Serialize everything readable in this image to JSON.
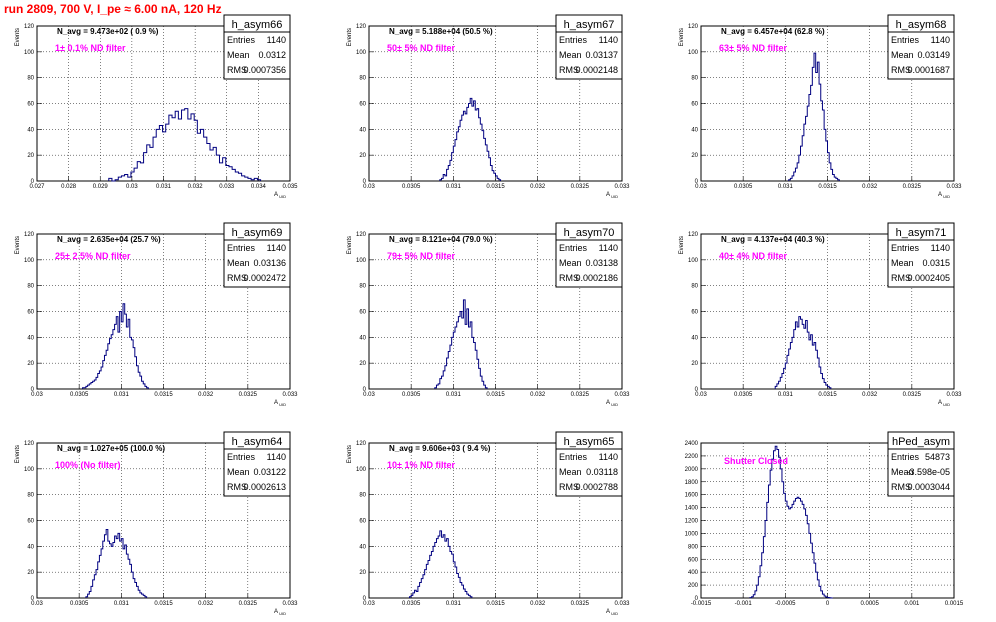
{
  "title": "run 2809,   700 V, I_pe ≈ 6.00 nA, 120 Hz",
  "stats_labels": {
    "entries": "Entries",
    "mean": "Mean",
    "rms": "RMS"
  },
  "colors": {
    "title": "#ff0000",
    "histogram": "#000080",
    "annotation": "#ff00ff",
    "grid": "#000000"
  },
  "chart_data": [
    {
      "type": "bar",
      "name": "h_asym66",
      "navg": "N_avg = 9.473e+02 ( 0.9 %)",
      "filter": "1± 0.1% ND filter",
      "entries": "1140",
      "mean": "0.0312",
      "rms": "0.0007356",
      "xlabel": "A_UID",
      "ylabel": "Events",
      "xlim": [
        0.027,
        0.035
      ],
      "ylim": [
        0,
        120
      ],
      "xticks": [
        0.027,
        0.028,
        0.029,
        0.03,
        0.031,
        0.032,
        0.033,
        0.034,
        0.035
      ],
      "xticklabels": [
        "0.027",
        "0.028",
        "0.029",
        "0.03",
        "0.031",
        "0.032",
        "0.033",
        "0.034",
        "0.035"
      ],
      "yticks": [
        0,
        20,
        40,
        60,
        80,
        100,
        120
      ],
      "x_start": 0.02927,
      "bin_width": 0.0001,
      "values": [
        2,
        0,
        1,
        3,
        4,
        5,
        3,
        7,
        10,
        15,
        14,
        22,
        28,
        26,
        34,
        40,
        43,
        38,
        44,
        51,
        49,
        54,
        48,
        55,
        56,
        48,
        52,
        47,
        37,
        40,
        34,
        29,
        24,
        26,
        20,
        14,
        18,
        12,
        11,
        9,
        7,
        6,
        4,
        3,
        2,
        1,
        2,
        1
      ]
    },
    {
      "type": "bar",
      "name": "h_asym67",
      "navg": "N_avg = 5.188e+04 (50.5 %)",
      "filter": "50± 5% ND filter",
      "entries": "1140",
      "mean": "0.03137",
      "rms": "0.0002148",
      "xlabel": "A_UID",
      "ylabel": "Events",
      "xlim": [
        0.03,
        0.033
      ],
      "ylim": [
        0,
        120
      ],
      "xticks": [
        0.03,
        0.0305,
        0.031,
        0.0315,
        0.032,
        0.0325,
        0.033
      ],
      "xticklabels": [
        "0.03",
        "0.0305",
        "0.031",
        "0.0315",
        "0.032",
        "0.0325",
        "0.033"
      ],
      "yticks": [
        0,
        20,
        40,
        60,
        80,
        100,
        120
      ],
      "x_start": 0.03084,
      "bin_width": 2e-05,
      "values": [
        1,
        2,
        5,
        4,
        9,
        12,
        16,
        22,
        27,
        32,
        38,
        42,
        47,
        51,
        54,
        52,
        57,
        60,
        64,
        58,
        62,
        55,
        56,
        49,
        44,
        39,
        33,
        28,
        23,
        18,
        12,
        8,
        6,
        4,
        2,
        1
      ]
    },
    {
      "type": "bar",
      "name": "h_asym68",
      "navg": "N_avg = 6.457e+04 (62.8 %)",
      "filter": "63± 5% ND filter",
      "entries": "1140",
      "mean": "0.03149",
      "rms": "0.0001687",
      "xlabel": "A_UID",
      "ylabel": "Events",
      "xlim": [
        0.03,
        0.033
      ],
      "ylim": [
        0,
        120
      ],
      "xticks": [
        0.03,
        0.0305,
        0.031,
        0.0315,
        0.032,
        0.0325,
        0.033
      ],
      "xticklabels": [
        "0.03",
        "0.0305",
        "0.031",
        "0.0315",
        "0.032",
        "0.0325",
        "0.033"
      ],
      "yticks": [
        0,
        20,
        40,
        60,
        80,
        100,
        120
      ],
      "x_start": 0.03104,
      "bin_width": 2e-05,
      "values": [
        1,
        2,
        4,
        7,
        10,
        14,
        20,
        27,
        35,
        44,
        50,
        58,
        67,
        74,
        88,
        99,
        84,
        92,
        75,
        62,
        55,
        40,
        31,
        22,
        14,
        9,
        5,
        3,
        2,
        1
      ]
    },
    {
      "type": "bar",
      "name": "h_asym69",
      "navg": "N_avg = 2.635e+04 (25.7 %)",
      "filter": "25± 2.5% ND filter",
      "entries": "1140",
      "mean": "0.03136",
      "rms": "0.0002472",
      "xlabel": "A_UID",
      "ylabel": "Events",
      "xlim": [
        0.03,
        0.033
      ],
      "ylim": [
        0,
        120
      ],
      "xticks": [
        0.03,
        0.0305,
        0.031,
        0.0315,
        0.032,
        0.0325,
        0.033
      ],
      "xticklabels": [
        "0.03",
        "0.0305",
        "0.031",
        "0.0315",
        "0.032",
        "0.0325",
        "0.033"
      ],
      "yticks": [
        0,
        20,
        40,
        60,
        80,
        100,
        120
      ],
      "x_start": 0.03054,
      "bin_width": 2e-05,
      "values": [
        1,
        1,
        2,
        3,
        4,
        5,
        6,
        7,
        9,
        12,
        14,
        17,
        22,
        26,
        30,
        35,
        39,
        42,
        46,
        50,
        56,
        44,
        60,
        52,
        66,
        58,
        48,
        54,
        40,
        38,
        32,
        25,
        18,
        13,
        10,
        6,
        4,
        2,
        1
      ]
    },
    {
      "type": "bar",
      "name": "h_asym70",
      "navg": "N_avg = 8.121e+04 (79.0 %)",
      "filter": "79± 5% ND filter",
      "entries": "1140",
      "mean": "0.03138",
      "rms": "0.0002186",
      "xlabel": "A_UID",
      "ylabel": "Events",
      "xlim": [
        0.03,
        0.033
      ],
      "ylim": [
        0,
        120
      ],
      "xticks": [
        0.03,
        0.0305,
        0.031,
        0.0315,
        0.032,
        0.0325,
        0.033
      ],
      "xticklabels": [
        "0.03",
        "0.0305",
        "0.031",
        "0.0315",
        "0.032",
        "0.0325",
        "0.033"
      ],
      "yticks": [
        0,
        20,
        40,
        60,
        80,
        100,
        120
      ],
      "x_start": 0.03078,
      "bin_width": 2e-05,
      "values": [
        1,
        3,
        4,
        8,
        10,
        14,
        18,
        24,
        29,
        34,
        40,
        44,
        48,
        52,
        56,
        60,
        55,
        69,
        50,
        62,
        48,
        52,
        40,
        36,
        30,
        23,
        16,
        10,
        6,
        3,
        1
      ]
    },
    {
      "type": "bar",
      "name": "h_asym71",
      "navg": "N_avg = 4.137e+04 (40.3 %)",
      "filter": "40± 4% ND filter",
      "entries": "1140",
      "mean": "0.0315",
      "rms": "0.0002405",
      "xlabel": "A_UID",
      "ylabel": "Events",
      "xlim": [
        0.03,
        0.033
      ],
      "ylim": [
        0,
        120
      ],
      "xticks": [
        0.03,
        0.0305,
        0.031,
        0.0315,
        0.032,
        0.0325,
        0.033
      ],
      "xticklabels": [
        "0.03",
        "0.0305",
        "0.031",
        "0.0315",
        "0.032",
        "0.0325",
        "0.033"
      ],
      "yticks": [
        0,
        20,
        40,
        60,
        80,
        100,
        120
      ],
      "x_start": 0.03088,
      "bin_width": 2e-05,
      "values": [
        2,
        4,
        6,
        9,
        12,
        16,
        20,
        26,
        31,
        36,
        40,
        46,
        52,
        48,
        56,
        54,
        50,
        47,
        53,
        44,
        38,
        42,
        34,
        36,
        30,
        24,
        17,
        12,
        8,
        5,
        3,
        2,
        1
      ]
    },
    {
      "type": "bar",
      "name": "h_asym64",
      "navg": "N_avg = 1.027e+05 (100.0 %)",
      "filter": "100% (No filter)",
      "entries": "1140",
      "mean": "0.03122",
      "rms": "0.0002613",
      "xlabel": "A_UID",
      "ylabel": "Events",
      "xlim": [
        0.03,
        0.033
      ],
      "ylim": [
        0,
        120
      ],
      "xticks": [
        0.03,
        0.0305,
        0.031,
        0.0315,
        0.032,
        0.0325,
        0.033
      ],
      "xticklabels": [
        "0.03",
        "0.0305",
        "0.031",
        "0.0315",
        "0.032",
        "0.0325",
        "0.033"
      ],
      "yticks": [
        0,
        20,
        40,
        60,
        80,
        100,
        120
      ],
      "x_start": 0.03058,
      "bin_width": 2e-05,
      "values": [
        1,
        3,
        5,
        9,
        14,
        18,
        22,
        28,
        33,
        38,
        44,
        49,
        53,
        44,
        42,
        40,
        43,
        48,
        46,
        50,
        44,
        46,
        38,
        41,
        34,
        30,
        26,
        20,
        15,
        12,
        9,
        6,
        4,
        3,
        2,
        1
      ]
    },
    {
      "type": "bar",
      "name": "h_asym65",
      "navg": "N_avg = 9.606e+03 ( 9.4 %)",
      "filter": "10± 1% ND filter",
      "entries": "1140",
      "mean": "0.03118",
      "rms": "0.0002788",
      "xlabel": "A_UID",
      "ylabel": "Events",
      "xlim": [
        0.03,
        0.033
      ],
      "ylim": [
        0,
        120
      ],
      "xticks": [
        0.03,
        0.0305,
        0.031,
        0.0315,
        0.032,
        0.0325,
        0.033
      ],
      "xticklabels": [
        "0.03",
        "0.0305",
        "0.031",
        "0.0315",
        "0.032",
        "0.0325",
        "0.033"
      ],
      "yticks": [
        0,
        20,
        40,
        60,
        80,
        100,
        120
      ],
      "x_start": 0.03048,
      "bin_width": 2e-05,
      "values": [
        1,
        2,
        4,
        6,
        5,
        9,
        12,
        15,
        18,
        22,
        26,
        29,
        33,
        36,
        40,
        43,
        46,
        48,
        52,
        47,
        49,
        44,
        46,
        40,
        36,
        34,
        28,
        24,
        19,
        16,
        12,
        10,
        7,
        5,
        3,
        2,
        1
      ]
    },
    {
      "type": "bar",
      "name": "hPed_asym",
      "navg": "",
      "filter": "Shutter Closed",
      "entries": "54873",
      "mean": "-3.598e-05",
      "rms": "0.0003044",
      "xlabel": "",
      "ylabel": "",
      "xlim": [
        -0.0015,
        0.0015
      ],
      "ylim": [
        0,
        2400
      ],
      "xticks": [
        -0.0015,
        -0.001,
        -0.0005,
        0,
        0.0005,
        0.001,
        0.0015
      ],
      "xticklabels": [
        "-0.0015",
        "-0.001",
        "-0.0005",
        "0",
        "0.0005",
        "0.001",
        "0.0015"
      ],
      "yticks": [
        0,
        200,
        400,
        600,
        800,
        1000,
        1200,
        1400,
        1600,
        1800,
        2000,
        2200,
        2400
      ],
      "x_start": -0.00092,
      "bin_width": 2e-05,
      "values": [
        5,
        20,
        50,
        110,
        200,
        330,
        500,
        700,
        950,
        1200,
        1480,
        1750,
        1980,
        2150,
        2280,
        2350,
        2300,
        2180,
        2000,
        1800,
        1620,
        1500,
        1420,
        1380,
        1400,
        1450,
        1500,
        1540,
        1560,
        1540,
        1500,
        1450,
        1380,
        1280,
        1150,
        1000,
        850,
        700,
        540,
        400,
        280,
        180,
        110,
        60,
        30,
        15,
        8,
        3,
        1
      ]
    }
  ]
}
